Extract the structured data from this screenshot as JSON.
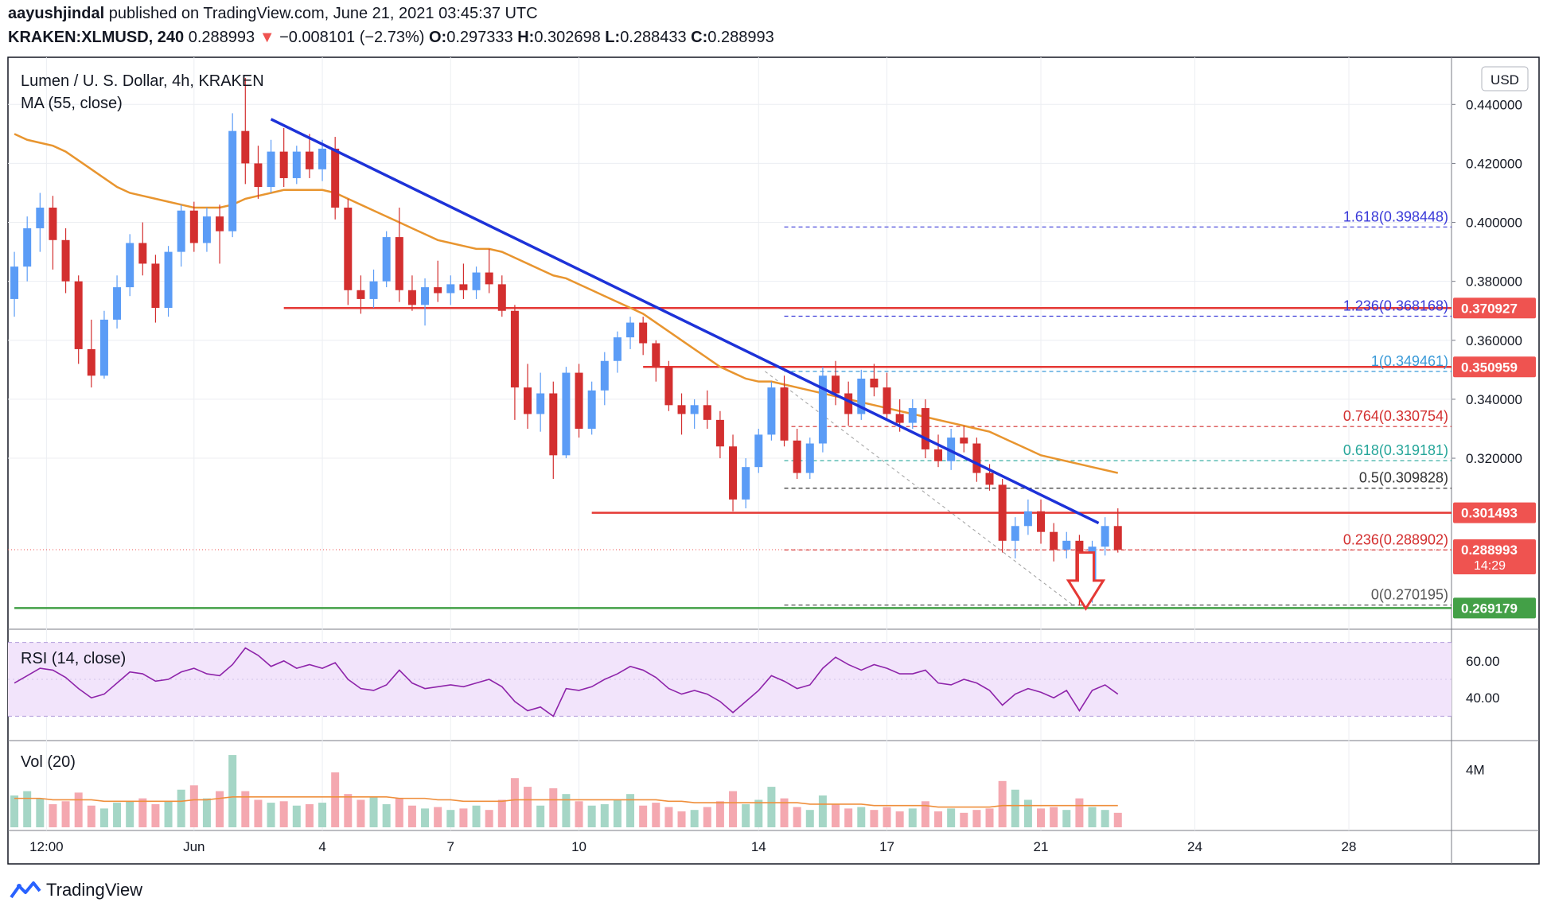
{
  "header": {
    "publisher": "aayushjindal",
    "published_text": "published on TradingView.com, June 21, 2021 03:45:37 UTC",
    "symbol": "KRAKEN:XLMUSD, 240",
    "last": "0.288993",
    "change": "−0.008101 (−2.73%)",
    "o_label": "O:",
    "o": "0.297333",
    "h_label": "H:",
    "h": "0.302698",
    "l_label": "L:",
    "l": "0.288433",
    "c_label": "C:",
    "c": "0.288993"
  },
  "legend": {
    "title": "Lumen / U. S. Dollar, 4h, KRAKEN",
    "ma": "MA (55, close)",
    "rsi": "RSI (14, close)",
    "vol": "Vol (20)"
  },
  "currency_button": "USD",
  "footer_brand": "TradingView",
  "colors": {
    "up": "#5b9cf6",
    "down": "#d32f2f",
    "ma": "#e8952f",
    "trend": "#1d32d8",
    "hline": "#e53935",
    "support": "#43a047",
    "rsi": "#8e24aa",
    "rsi_band": "#f2e4fb",
    "fib_blue": "#3a3ad8",
    "fib_red": "#d32f2f",
    "fib_green": "#26a69a",
    "fib_black": "#333333",
    "price_box": "#ef5350",
    "support_box": "#43a047"
  },
  "chart_data": {
    "type": "candlestick",
    "price_ticks": [
      "0.440000",
      "0.420000",
      "0.400000",
      "0.380000",
      "0.360000",
      "0.340000",
      "0.320000"
    ],
    "rsi_ticks": [
      "60.00",
      "40.00"
    ],
    "volume_ticks": [
      "4M"
    ],
    "x_labels": [
      {
        "t": 2.5,
        "label": "12:00"
      },
      {
        "t": 14,
        "label": "Jun"
      },
      {
        "t": 24,
        "label": "4"
      },
      {
        "t": 34,
        "label": "7"
      },
      {
        "t": 44,
        "label": "10"
      },
      {
        "t": 58,
        "label": "14"
      },
      {
        "t": 68,
        "label": "17"
      },
      {
        "t": 80,
        "label": "21"
      },
      {
        "t": 92,
        "label": "24"
      },
      {
        "t": 104,
        "label": "28"
      }
    ],
    "price_boxes": [
      {
        "price": 0.370927,
        "label": "0.370927",
        "color": "#ef5350"
      },
      {
        "price": 0.350959,
        "label": "0.350959",
        "color": "#ef5350"
      },
      {
        "price": 0.301493,
        "label": "0.301493",
        "color": "#ef5350"
      },
      {
        "price": 0.288993,
        "label": "0.288993",
        "sub": "14:29",
        "color": "#ef5350"
      },
      {
        "price": 0.269179,
        "label": "0.269179",
        "color": "#43a047"
      }
    ],
    "horizontal_lines": [
      {
        "price": 0.370927,
        "t0": 21,
        "color": "#e53935"
      },
      {
        "price": 0.350959,
        "t0": 49,
        "color": "#e53935"
      },
      {
        "price": 0.301493,
        "t0": 45,
        "color": "#e53935"
      },
      {
        "price": 0.269179,
        "t0": 0,
        "color": "#43a047"
      }
    ],
    "fibonacci": [
      {
        "label": "1.618(0.398448)",
        "price": 0.398448,
        "color": "#3a3ad8"
      },
      {
        "label": "1.236(0.368168)",
        "price": 0.368168,
        "color": "#3a3ad8"
      },
      {
        "label": "1(0.349461)",
        "price": 0.349461,
        "color": "#3a9ad8"
      },
      {
        "label": "0.764(0.330754)",
        "price": 0.330754,
        "color": "#d32f2f"
      },
      {
        "label": "0.618(0.319181)",
        "price": 0.319181,
        "color": "#26a69a"
      },
      {
        "label": "0.5(0.309828)",
        "price": 0.309828,
        "color": "#333333"
      },
      {
        "label": "0.236(0.288902)",
        "price": 0.288902,
        "color": "#d32f2f"
      },
      {
        "label": "0(0.270195)",
        "price": 0.270195,
        "color": "#555555"
      }
    ],
    "fib_range_t": [
      60,
      112
    ],
    "trendline": {
      "t0": 20,
      "p0": 0.435,
      "t1": 84.5,
      "p1": 0.298
    },
    "sell_arrow": {
      "t": 83.5,
      "p_top": 0.288,
      "p_bottom": 0.269
    },
    "candles": [
      {
        "o": 0.374,
        "h": 0.39,
        "l": 0.368,
        "c": 0.385
      },
      {
        "o": 0.385,
        "h": 0.402,
        "l": 0.38,
        "c": 0.398
      },
      {
        "o": 0.398,
        "h": 0.41,
        "l": 0.39,
        "c": 0.405
      },
      {
        "o": 0.405,
        "h": 0.409,
        "l": 0.384,
        "c": 0.394
      },
      {
        "o": 0.394,
        "h": 0.398,
        "l": 0.376,
        "c": 0.38
      },
      {
        "o": 0.38,
        "h": 0.382,
        "l": 0.352,
        "c": 0.357
      },
      {
        "o": 0.357,
        "h": 0.367,
        "l": 0.344,
        "c": 0.348
      },
      {
        "o": 0.348,
        "h": 0.37,
        "l": 0.347,
        "c": 0.367
      },
      {
        "o": 0.367,
        "h": 0.382,
        "l": 0.364,
        "c": 0.378
      },
      {
        "o": 0.378,
        "h": 0.396,
        "l": 0.375,
        "c": 0.393
      },
      {
        "o": 0.393,
        "h": 0.4,
        "l": 0.382,
        "c": 0.386
      },
      {
        "o": 0.386,
        "h": 0.389,
        "l": 0.366,
        "c": 0.371
      },
      {
        "o": 0.371,
        "h": 0.392,
        "l": 0.368,
        "c": 0.39
      },
      {
        "o": 0.39,
        "h": 0.406,
        "l": 0.385,
        "c": 0.404
      },
      {
        "o": 0.404,
        "h": 0.407,
        "l": 0.39,
        "c": 0.393
      },
      {
        "o": 0.393,
        "h": 0.405,
        "l": 0.39,
        "c": 0.402
      },
      {
        "o": 0.402,
        "h": 0.406,
        "l": 0.386,
        "c": 0.397
      },
      {
        "o": 0.397,
        "h": 0.437,
        "l": 0.395,
        "c": 0.431
      },
      {
        "o": 0.431,
        "h": 0.449,
        "l": 0.413,
        "c": 0.42
      },
      {
        "o": 0.42,
        "h": 0.426,
        "l": 0.408,
        "c": 0.412
      },
      {
        "o": 0.412,
        "h": 0.428,
        "l": 0.41,
        "c": 0.424
      },
      {
        "o": 0.424,
        "h": 0.432,
        "l": 0.412,
        "c": 0.415
      },
      {
        "o": 0.415,
        "h": 0.426,
        "l": 0.413,
        "c": 0.424
      },
      {
        "o": 0.424,
        "h": 0.43,
        "l": 0.415,
        "c": 0.418
      },
      {
        "o": 0.418,
        "h": 0.428,
        "l": 0.414,
        "c": 0.425
      },
      {
        "o": 0.425,
        "h": 0.429,
        "l": 0.401,
        "c": 0.405
      },
      {
        "o": 0.405,
        "h": 0.408,
        "l": 0.372,
        "c": 0.377
      },
      {
        "o": 0.377,
        "h": 0.382,
        "l": 0.369,
        "c": 0.374
      },
      {
        "o": 0.374,
        "h": 0.384,
        "l": 0.371,
        "c": 0.38
      },
      {
        "o": 0.38,
        "h": 0.397,
        "l": 0.378,
        "c": 0.395
      },
      {
        "o": 0.395,
        "h": 0.405,
        "l": 0.373,
        "c": 0.377
      },
      {
        "o": 0.377,
        "h": 0.382,
        "l": 0.37,
        "c": 0.372
      },
      {
        "o": 0.372,
        "h": 0.381,
        "l": 0.365,
        "c": 0.378
      },
      {
        "o": 0.378,
        "h": 0.387,
        "l": 0.373,
        "c": 0.376
      },
      {
        "o": 0.376,
        "h": 0.382,
        "l": 0.372,
        "c": 0.379
      },
      {
        "o": 0.379,
        "h": 0.386,
        "l": 0.374,
        "c": 0.377
      },
      {
        "o": 0.377,
        "h": 0.385,
        "l": 0.374,
        "c": 0.383
      },
      {
        "o": 0.383,
        "h": 0.391,
        "l": 0.376,
        "c": 0.379
      },
      {
        "o": 0.379,
        "h": 0.382,
        "l": 0.368,
        "c": 0.37
      },
      {
        "o": 0.37,
        "h": 0.372,
        "l": 0.333,
        "c": 0.344
      },
      {
        "o": 0.344,
        "h": 0.352,
        "l": 0.33,
        "c": 0.335
      },
      {
        "o": 0.335,
        "h": 0.349,
        "l": 0.329,
        "c": 0.342
      },
      {
        "o": 0.342,
        "h": 0.346,
        "l": 0.313,
        "c": 0.321
      },
      {
        "o": 0.321,
        "h": 0.351,
        "l": 0.32,
        "c": 0.349
      },
      {
        "o": 0.349,
        "h": 0.352,
        "l": 0.327,
        "c": 0.33
      },
      {
        "o": 0.33,
        "h": 0.346,
        "l": 0.328,
        "c": 0.343
      },
      {
        "o": 0.343,
        "h": 0.356,
        "l": 0.338,
        "c": 0.353
      },
      {
        "o": 0.353,
        "h": 0.363,
        "l": 0.349,
        "c": 0.361
      },
      {
        "o": 0.361,
        "h": 0.368,
        "l": 0.357,
        "c": 0.366
      },
      {
        "o": 0.366,
        "h": 0.368,
        "l": 0.355,
        "c": 0.359
      },
      {
        "o": 0.359,
        "h": 0.36,
        "l": 0.346,
        "c": 0.351
      },
      {
        "o": 0.351,
        "h": 0.353,
        "l": 0.336,
        "c": 0.338
      },
      {
        "o": 0.338,
        "h": 0.342,
        "l": 0.328,
        "c": 0.335
      },
      {
        "o": 0.335,
        "h": 0.34,
        "l": 0.33,
        "c": 0.338
      },
      {
        "o": 0.338,
        "h": 0.343,
        "l": 0.33,
        "c": 0.333
      },
      {
        "o": 0.333,
        "h": 0.336,
        "l": 0.32,
        "c": 0.324
      },
      {
        "o": 0.324,
        "h": 0.328,
        "l": 0.302,
        "c": 0.306
      },
      {
        "o": 0.306,
        "h": 0.32,
        "l": 0.303,
        "c": 0.317
      },
      {
        "o": 0.317,
        "h": 0.33,
        "l": 0.315,
        "c": 0.328
      },
      {
        "o": 0.328,
        "h": 0.346,
        "l": 0.326,
        "c": 0.344
      },
      {
        "o": 0.344,
        "h": 0.348,
        "l": 0.324,
        "c": 0.326
      },
      {
        "o": 0.326,
        "h": 0.33,
        "l": 0.313,
        "c": 0.315
      },
      {
        "o": 0.315,
        "h": 0.327,
        "l": 0.313,
        "c": 0.325
      },
      {
        "o": 0.325,
        "h": 0.351,
        "l": 0.322,
        "c": 0.348
      },
      {
        "o": 0.348,
        "h": 0.353,
        "l": 0.338,
        "c": 0.342
      },
      {
        "o": 0.342,
        "h": 0.346,
        "l": 0.331,
        "c": 0.335
      },
      {
        "o": 0.335,
        "h": 0.35,
        "l": 0.333,
        "c": 0.347
      },
      {
        "o": 0.347,
        "h": 0.352,
        "l": 0.341,
        "c": 0.344
      },
      {
        "o": 0.344,
        "h": 0.349,
        "l": 0.333,
        "c": 0.335
      },
      {
        "o": 0.335,
        "h": 0.34,
        "l": 0.329,
        "c": 0.332
      },
      {
        "o": 0.332,
        "h": 0.34,
        "l": 0.33,
        "c": 0.337
      },
      {
        "o": 0.337,
        "h": 0.34,
        "l": 0.32,
        "c": 0.323
      },
      {
        "o": 0.323,
        "h": 0.328,
        "l": 0.317,
        "c": 0.319
      },
      {
        "o": 0.319,
        "h": 0.33,
        "l": 0.316,
        "c": 0.327
      },
      {
        "o": 0.327,
        "h": 0.331,
        "l": 0.322,
        "c": 0.325
      },
      {
        "o": 0.325,
        "h": 0.327,
        "l": 0.312,
        "c": 0.315
      },
      {
        "o": 0.315,
        "h": 0.318,
        "l": 0.309,
        "c": 0.311
      },
      {
        "o": 0.311,
        "h": 0.313,
        "l": 0.288,
        "c": 0.292
      },
      {
        "o": 0.292,
        "h": 0.3,
        "l": 0.286,
        "c": 0.297
      },
      {
        "o": 0.297,
        "h": 0.306,
        "l": 0.294,
        "c": 0.302
      },
      {
        "o": 0.302,
        "h": 0.306,
        "l": 0.291,
        "c": 0.295
      },
      {
        "o": 0.295,
        "h": 0.298,
        "l": 0.285,
        "c": 0.289
      },
      {
        "o": 0.289,
        "h": 0.295,
        "l": 0.286,
        "c": 0.292
      },
      {
        "o": 0.292,
        "h": 0.294,
        "l": 0.27,
        "c": 0.274
      },
      {
        "o": 0.274,
        "h": 0.292,
        "l": 0.271,
        "c": 0.29
      },
      {
        "o": 0.29,
        "h": 0.3,
        "l": 0.287,
        "c": 0.297
      },
      {
        "o": 0.297,
        "h": 0.303,
        "l": 0.288,
        "c": 0.289
      }
    ],
    "ma55": [
      0.43,
      0.428,
      0.427,
      0.426,
      0.424,
      0.421,
      0.418,
      0.415,
      0.412,
      0.41,
      0.409,
      0.408,
      0.407,
      0.406,
      0.405,
      0.405,
      0.405,
      0.406,
      0.408,
      0.409,
      0.41,
      0.411,
      0.411,
      0.411,
      0.411,
      0.41,
      0.408,
      0.406,
      0.404,
      0.402,
      0.4,
      0.398,
      0.396,
      0.394,
      0.393,
      0.392,
      0.391,
      0.391,
      0.39,
      0.388,
      0.386,
      0.384,
      0.382,
      0.381,
      0.379,
      0.377,
      0.375,
      0.373,
      0.371,
      0.369,
      0.366,
      0.363,
      0.36,
      0.357,
      0.354,
      0.351,
      0.349,
      0.347,
      0.346,
      0.346,
      0.345,
      0.344,
      0.343,
      0.342,
      0.341,
      0.34,
      0.339,
      0.338,
      0.337,
      0.336,
      0.335,
      0.334,
      0.333,
      0.332,
      0.331,
      0.33,
      0.329,
      0.327,
      0.325,
      0.323,
      0.321,
      0.32,
      0.319,
      0.318,
      0.317,
      0.316,
      0.315
    ],
    "rsi": [
      48,
      52,
      56,
      55,
      51,
      45,
      40,
      42,
      48,
      54,
      53,
      49,
      50,
      54,
      56,
      53,
      52,
      58,
      67,
      63,
      57,
      60,
      56,
      58,
      56,
      59,
      50,
      45,
      44,
      47,
      55,
      48,
      45,
      46,
      47,
      46,
      48,
      50,
      46,
      38,
      33,
      35,
      30,
      45,
      44,
      46,
      50,
      53,
      57,
      55,
      51,
      45,
      42,
      44,
      42,
      38,
      32,
      38,
      44,
      52,
      49,
      45,
      47,
      56,
      62,
      58,
      55,
      58,
      56,
      53,
      53,
      55,
      48,
      47,
      50,
      48,
      44,
      36,
      42,
      45,
      43,
      40,
      44,
      33,
      44,
      47,
      42
    ],
    "volume": [
      2.2,
      2.5,
      2.0,
      1.6,
      1.8,
      2.4,
      1.5,
      1.3,
      1.7,
      1.8,
      2.0,
      1.6,
      1.8,
      2.6,
      2.9,
      2.0,
      2.5,
      5.0,
      2.5,
      1.9,
      1.7,
      1.8,
      1.5,
      1.6,
      1.7,
      3.8,
      2.3,
      1.9,
      2.1,
      1.6,
      2.0,
      1.5,
      1.3,
      1.4,
      1.2,
      1.3,
      1.5,
      1.2,
      1.9,
      3.4,
      2.8,
      1.5,
      2.7,
      2.3,
      1.8,
      1.5,
      1.6,
      1.9,
      2.3,
      1.5,
      1.7,
      1.4,
      1.1,
      1.2,
      1.4,
      1.8,
      2.5,
      1.6,
      1.9,
      2.8,
      2.0,
      1.4,
      1.2,
      2.2,
      1.6,
      1.3,
      1.4,
      1.2,
      1.4,
      1.1,
      1.3,
      1.8,
      1.1,
      1.3,
      1.0,
      1.2,
      1.3,
      3.2,
      2.6,
      1.9,
      1.3,
      1.4,
      1.2,
      2.0,
      1.4,
      1.2,
      1.0
    ],
    "volume_ma": [
      2.0,
      2.0,
      2.0,
      1.9,
      1.9,
      1.9,
      1.9,
      1.8,
      1.8,
      1.8,
      1.8,
      1.8,
      1.8,
      1.8,
      1.9,
      1.9,
      2.0,
      2.1,
      2.1,
      2.1,
      2.1,
      2.1,
      2.1,
      2.1,
      2.1,
      2.1,
      2.1,
      2.1,
      2.1,
      2.1,
      2.0,
      2.0,
      2.0,
      1.9,
      1.9,
      1.8,
      1.8,
      1.8,
      1.8,
      1.9,
      1.9,
      1.9,
      1.9,
      1.9,
      1.9,
      1.9,
      1.9,
      1.9,
      1.9,
      1.9,
      1.9,
      1.8,
      1.8,
      1.7,
      1.7,
      1.7,
      1.7,
      1.7,
      1.7,
      1.7,
      1.7,
      1.7,
      1.6,
      1.6,
      1.6,
      1.6,
      1.6,
      1.5,
      1.5,
      1.5,
      1.5,
      1.5,
      1.4,
      1.4,
      1.4,
      1.4,
      1.4,
      1.5,
      1.5,
      1.5,
      1.5,
      1.5,
      1.5,
      1.5,
      1.5,
      1.5,
      1.5
    ],
    "vol_max": 5.5,
    "rsi_range": [
      25,
      72
    ],
    "y_range": [
      0.262,
      0.456
    ],
    "t_range": [
      -0.5,
      112
    ]
  }
}
